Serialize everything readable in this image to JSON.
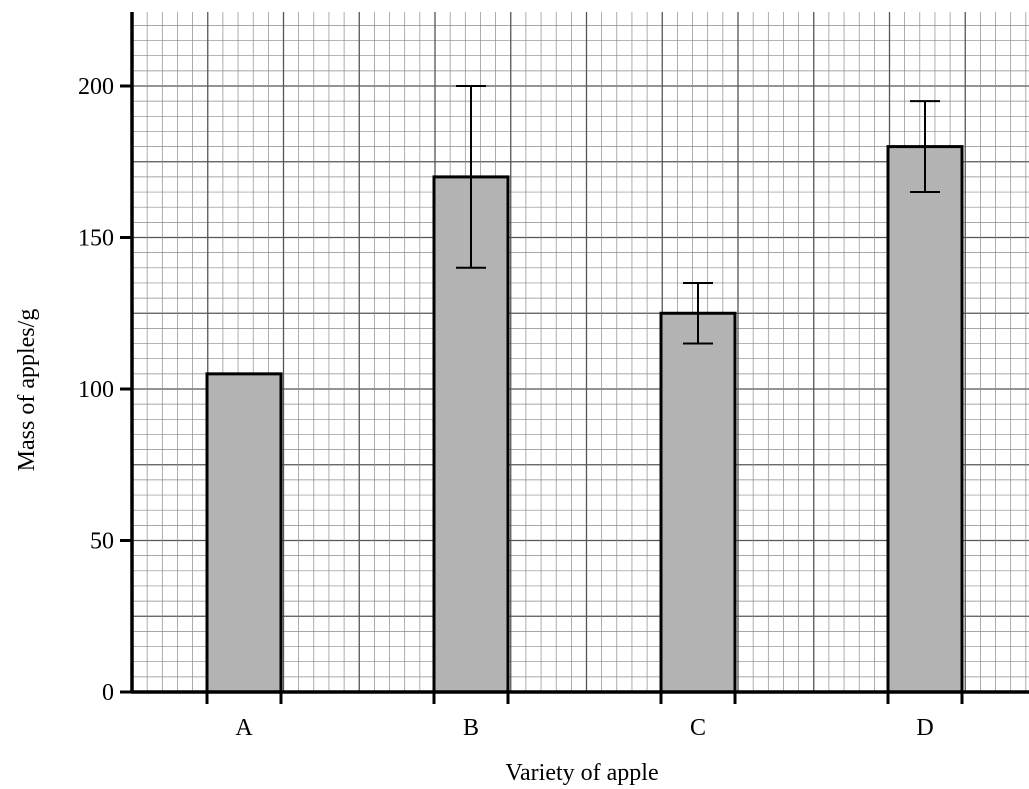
{
  "chart_data": {
    "type": "bar",
    "title": "",
    "xlabel": "Variety of apple",
    "ylabel": "Mass of apples/g",
    "categories": [
      "A",
      "B",
      "C",
      "D"
    ],
    "values": [
      105,
      170,
      125,
      180
    ],
    "error_bars": [
      null,
      {
        "low": 140,
        "high": 200
      },
      {
        "low": 115,
        "high": 135
      },
      {
        "low": 165,
        "high": 195
      }
    ],
    "ylim": [
      0,
      225
    ],
    "yticks": [
      0,
      50,
      100,
      150,
      200
    ],
    "ytick_labels": [
      "0",
      "50",
      "100",
      "150",
      "200"
    ],
    "grid": true,
    "bar_color": "#b3b3b3"
  }
}
